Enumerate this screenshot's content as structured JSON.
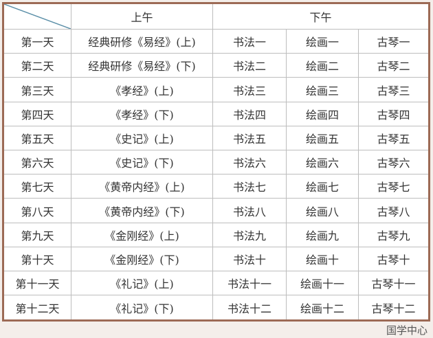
{
  "header": {
    "morning": "上午",
    "afternoon": "下午"
  },
  "rows": [
    {
      "day": "第一天",
      "morning": "经典研修《易经》(上)",
      "calligraphy": "书法一",
      "painting": "绘画一",
      "guqin": "古琴一"
    },
    {
      "day": "第二天",
      "morning": "经典研修《易经》(下)",
      "calligraphy": "书法二",
      "painting": "绘画二",
      "guqin": "古琴二"
    },
    {
      "day": "第三天",
      "morning": "《孝经》(上)",
      "calligraphy": "书法三",
      "painting": "绘画三",
      "guqin": "古琴三"
    },
    {
      "day": "第四天",
      "morning": "《孝经》(下)",
      "calligraphy": "书法四",
      "painting": "绘画四",
      "guqin": "古琴四"
    },
    {
      "day": "第五天",
      "morning": "《史记》(上)",
      "calligraphy": "书法五",
      "painting": "绘画五",
      "guqin": "古琴五"
    },
    {
      "day": "第六天",
      "morning": "《史记》(下)",
      "calligraphy": "书法六",
      "painting": "绘画六",
      "guqin": "古琴六"
    },
    {
      "day": "第七天",
      "morning": "《黄帝内经》(上)",
      "calligraphy": "书法七",
      "painting": "绘画七",
      "guqin": "古琴七"
    },
    {
      "day": "第八天",
      "morning": "《黄帝内经》(下)",
      "calligraphy": "书法八",
      "painting": "绘画八",
      "guqin": "古琴八"
    },
    {
      "day": "第九天",
      "morning": "《金刚经》(上)",
      "calligraphy": "书法九",
      "painting": "绘画九",
      "guqin": "古琴九"
    },
    {
      "day": "第十天",
      "morning": "《金刚经》(下)",
      "calligraphy": "书法十",
      "painting": "绘画十",
      "guqin": "古琴十"
    },
    {
      "day": "第十一天",
      "morning": "《礼记》(上)",
      "calligraphy": "书法十一",
      "painting": "绘画十一",
      "guqin": "古琴十一"
    },
    {
      "day": "第十二天",
      "morning": "《礼记》(下)",
      "calligraphy": "书法十二",
      "painting": "绘画十二",
      "guqin": "古琴十二"
    }
  ],
  "watermark": "国学中心",
  "colors": {
    "border": "#9c6a55",
    "grid": "#bdbdbd",
    "diagonal": "#5b8fa8"
  }
}
